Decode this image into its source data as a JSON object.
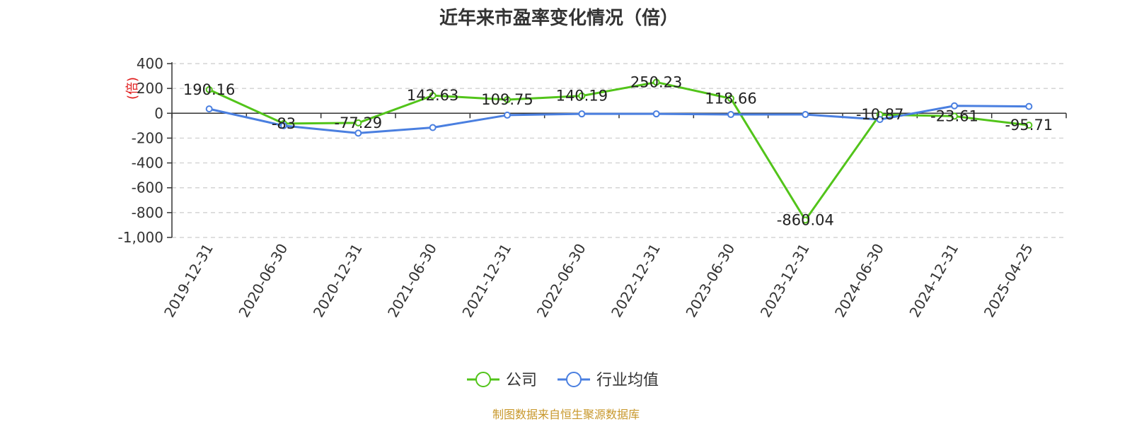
{
  "chart_data": {
    "type": "line",
    "title": "近年来市盈率变化情况（倍）",
    "ylabel": "(倍)",
    "ylim": [
      -1000,
      400
    ],
    "yticks": [
      400,
      200,
      0,
      -200,
      -400,
      -600,
      -800,
      -1000
    ],
    "ytick_labels": [
      "400",
      "200",
      "0",
      "-200",
      "-400",
      "-600",
      "-800",
      "-1,000"
    ],
    "categories": [
      "2019-12-31",
      "2020-06-30",
      "2020-12-31",
      "2021-06-30",
      "2021-12-31",
      "2022-06-30",
      "2022-12-31",
      "2023-06-30",
      "2023-12-31",
      "2024-06-30",
      "2024-12-31",
      "2025-04-25"
    ],
    "grid": true,
    "legend_position": "bottom-center",
    "series": [
      {
        "name": "公司",
        "color": "#52c41a",
        "values": [
          190.16,
          -83,
          -77.29,
          142.63,
          109.75,
          140.19,
          250.23,
          118.66,
          -860.04,
          -10.87,
          -23.61,
          -95.71
        ],
        "labels": [
          "190.16",
          "-83",
          "-77.29",
          "142.63",
          "109.75",
          "140.19",
          "250.23",
          "118.66",
          "-860.04",
          "-10.87",
          "-23.61",
          "-95.71"
        ]
      },
      {
        "name": "行业均值",
        "color": "#4a7fe0",
        "values": [
          35,
          -100,
          -160,
          -115,
          -15,
          -5,
          -5,
          -10,
          -10,
          -50,
          60,
          55
        ]
      }
    ]
  },
  "source_note": "制图数据来自恒生聚源数据库"
}
